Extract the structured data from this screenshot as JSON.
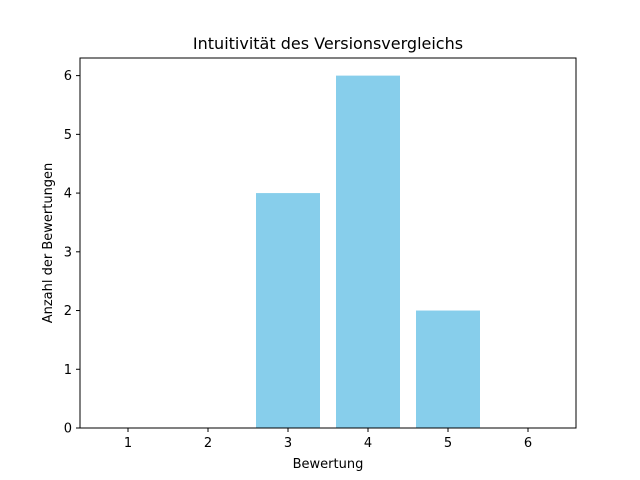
{
  "chart_data": {
    "type": "bar",
    "title": "Intuitivität des Versionsvergleichs",
    "xlabel": "Bewertung",
    "ylabel": "Anzahl der Bewertungen",
    "categories": [
      "1",
      "2",
      "3",
      "4",
      "5",
      "6"
    ],
    "values": [
      0,
      0,
      4,
      6,
      2,
      0
    ],
    "yticks": [
      "0",
      "1",
      "2",
      "3",
      "4",
      "5",
      "6"
    ],
    "ylim": [
      0,
      6.3
    ],
    "xlim": [
      0.4,
      6.6
    ],
    "grid": false,
    "bar_color": "#87ceeb"
  }
}
